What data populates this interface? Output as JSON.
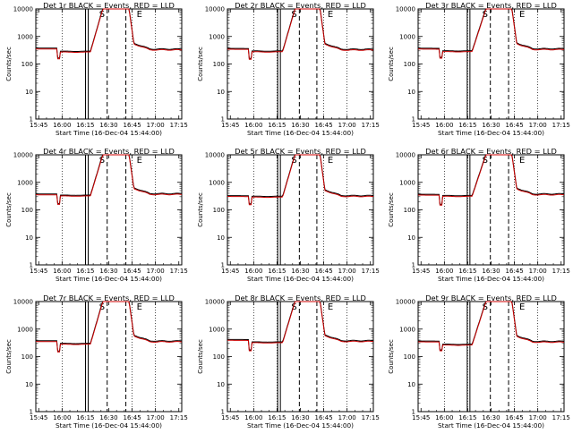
{
  "panels": [
    {
      "title": "Det 1r BLACK = Events, RED = LLD",
      "dip": [
        0.148,
        0.168
      ],
      "rise": [
        0.374,
        0.464
      ],
      "fall": [
        0.637,
        0.672
      ],
      "base_left": 380,
      "base_mid": 290,
      "base_right": 350,
      "dip_val": 165
    },
    {
      "title": "Det 2r BLACK = Events, RED = LLD",
      "dip": [
        0.148,
        0.168
      ],
      "rise": [
        0.378,
        0.468
      ],
      "fall": [
        0.633,
        0.668
      ],
      "base_left": 370,
      "base_mid": 295,
      "base_right": 345,
      "dip_val": 160
    },
    {
      "title": "Det 3r BLACK = Events, RED = LLD",
      "dip": [
        0.148,
        0.168
      ],
      "rise": [
        0.37,
        0.47
      ],
      "fall": [
        0.64,
        0.676
      ],
      "base_left": 375,
      "base_mid": 300,
      "base_right": 360,
      "dip_val": 175
    },
    {
      "title": "Det 4r BLACK = Events, RED = LLD",
      "dip": [
        0.148,
        0.168
      ],
      "rise": [
        0.374,
        0.464
      ],
      "fall": [
        0.637,
        0.672
      ],
      "base_left": 380,
      "base_mid": 340,
      "base_right": 390,
      "dip_val": 170
    },
    {
      "title": "Det 5r BLACK = Events, RED = LLD",
      "dip": [
        0.148,
        0.168
      ],
      "rise": [
        0.378,
        0.468
      ],
      "fall": [
        0.633,
        0.668
      ],
      "base_left": 330,
      "base_mid": 310,
      "base_right": 330,
      "dip_val": 165
    },
    {
      "title": "Det 6r BLACK = Events, RED = LLD",
      "dip": [
        0.148,
        0.168
      ],
      "rise": [
        0.37,
        0.47
      ],
      "fall": [
        0.64,
        0.676
      ],
      "base_left": 370,
      "base_mid": 330,
      "base_right": 380,
      "dip_val": 160
    },
    {
      "title": "Det 7r BLACK = Events, RED = LLD",
      "dip": [
        0.148,
        0.168
      ],
      "rise": [
        0.374,
        0.464
      ],
      "fall": [
        0.637,
        0.672
      ],
      "base_left": 380,
      "base_mid": 300,
      "base_right": 370,
      "dip_val": 160
    },
    {
      "title": "Det 8r BLACK = Events, RED = LLD",
      "dip": [
        0.148,
        0.168
      ],
      "rise": [
        0.378,
        0.468
      ],
      "fall": [
        0.633,
        0.668
      ],
      "base_left": 420,
      "base_mid": 340,
      "base_right": 380,
      "dip_val": 175
    },
    {
      "title": "Det 9r BLACK = Events, RED = LLD",
      "dip": [
        0.148,
        0.168
      ],
      "rise": [
        0.37,
        0.47
      ],
      "fall": [
        0.64,
        0.676
      ],
      "base_left": 370,
      "base_mid": 280,
      "base_right": 360,
      "dip_val": 175
    }
  ],
  "chart_data": {
    "type": "line",
    "layout": "3x3 grid of panels",
    "series_legend": "BLACK = Events, RED = LLD",
    "series_colors": {
      "events": "#000000",
      "lld": "#cc0000"
    },
    "yscale": "log",
    "ylim": [
      1,
      10000
    ],
    "ylabel": "Counts/sec",
    "xlabel": "Start Time (16-Dec-04 15:44:00)",
    "x_tick_labels": [
      "15:45",
      "16:00",
      "16:15",
      "16:30",
      "16:45",
      "17:00",
      "17:15"
    ],
    "y_tick_labels": [
      "1",
      "10",
      "100",
      "1000",
      "10000"
    ],
    "y_tick_values": [
      1,
      10,
      100,
      1000,
      10000
    ],
    "marker_labels": [
      "S",
      "E"
    ],
    "peak_value": 10000
  }
}
